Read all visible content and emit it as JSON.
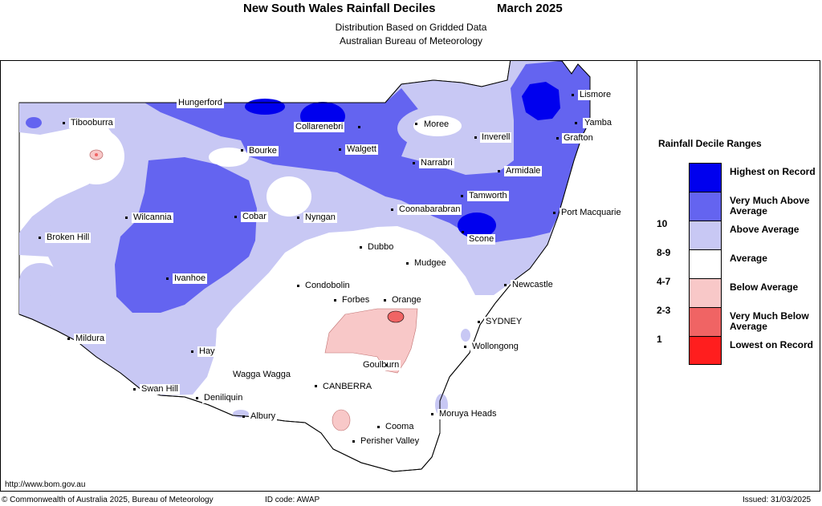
{
  "header": {
    "title": "New South Wales Rainfall Deciles",
    "period": "March 2025",
    "subtitle1": "Distribution Based on Gridded Data",
    "subtitle2": "Australian Bureau of Meteorology"
  },
  "legend": {
    "title": "Rainfall Decile Ranges",
    "entries": [
      {
        "name": "Highest on Record",
        "range": "",
        "color": "#0000ee"
      },
      {
        "name": "Very Much Above Average",
        "range": "10",
        "color": "#6464f0"
      },
      {
        "name": "Above Average",
        "range": "8-9",
        "color": "#c8c8f4"
      },
      {
        "name": "Average",
        "range": "4-7",
        "color": "#ffffff"
      },
      {
        "name": "Below Average",
        "range": "2-3",
        "color": "#f8c8c8"
      },
      {
        "name": "Very Much Below Average",
        "range": "1",
        "color": "#f06464"
      },
      {
        "name": "Lowest on Record",
        "range": "",
        "color": "#ff1e1e"
      }
    ]
  },
  "places": [
    "Hungerford",
    "Tibooburra",
    "Collarenebri",
    "Moree",
    "Lismore",
    "Yamba",
    "Inverell",
    "Grafton",
    "Bourke",
    "Walgett",
    "Narrabri",
    "Armidale",
    "Tamworth",
    "Coonabarabran",
    "Wilcannia",
    "Cobar",
    "Nyngan",
    "Port Macquarie",
    "Broken Hill",
    "Scone",
    "Dubbo",
    "Mudgee",
    "Ivanhoe",
    "Newcastle",
    "Condobolin",
    "Forbes",
    "Orange",
    "SYDNEY",
    "Mildura",
    "Wollongong",
    "Hay",
    "Goulburn",
    "Wagga Wagga",
    "CANBERRA",
    "Swan Hill",
    "Deniliquin",
    "Moruya Heads",
    "Albury",
    "Cooma",
    "Perisher Valley"
  ],
  "footer": {
    "url": "http://www.bom.gov.au",
    "copyright": "© Commonwealth of Australia 2025, Bureau of Meteorology",
    "id_code": "ID code: AWAP",
    "issued": "Issued: 31/03/2025"
  }
}
